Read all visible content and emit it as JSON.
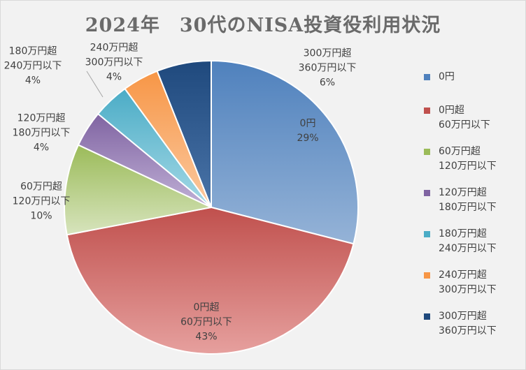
{
  "title": "2024年　30代のNISA投資役利用状況",
  "chart_data": {
    "type": "pie",
    "slices": [
      {
        "legend": [
          "0円"
        ],
        "label": [
          "0円",
          "29%"
        ],
        "value": 29,
        "color": "#4f81bd",
        "color_light": "#95b3d7"
      },
      {
        "legend": [
          "0円超",
          "60万円以下"
        ],
        "label": [
          "0円超",
          "60万円以下",
          "43%"
        ],
        "value": 43,
        "color": "#c0504d",
        "color_light": "#e6a09e"
      },
      {
        "legend": [
          "60万円超",
          "120万円以下"
        ],
        "label": [
          "60万円超",
          "120万円以下",
          "10%"
        ],
        "value": 10,
        "color": "#9bbb59",
        "color_light": "#d7e4bd"
      },
      {
        "legend": [
          "120万円超",
          "180万円以下"
        ],
        "label": [
          "120万円超",
          "180万円以下",
          "4%"
        ],
        "value": 4,
        "color": "#8064a2",
        "color_light": "#c0b0d6"
      },
      {
        "legend": [
          "180万円超",
          "240万円以下"
        ],
        "label": [
          "180万円超",
          "240万円以下",
          "4%"
        ],
        "value": 4,
        "color": "#4bacc6",
        "color_light": "#a5d9e6"
      },
      {
        "legend": [
          "240万円超",
          "300万円以下"
        ],
        "label": [
          "240万円超",
          "300万円以下",
          "4%"
        ],
        "value": 4,
        "color": "#f79646",
        "color_light": "#fbc9a0"
      },
      {
        "legend": [
          "300万円超",
          "360万円以下"
        ],
        "label": [
          "300万円超",
          "360万円以下",
          "6%"
        ],
        "value": 6,
        "color": "#1f497d",
        "color_light": "#4a74a8"
      }
    ],
    "legend_position": "right"
  }
}
